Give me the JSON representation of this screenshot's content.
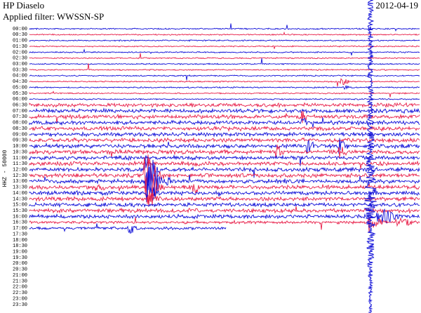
{
  "header": {
    "station": "HP Diaselo",
    "filter": "Applied filter: WWSSN-SP",
    "date": "2012-04-19"
  },
  "axis_label": "HHZ - 50000",
  "times": [
    "00:00",
    "00:30",
    "01:00",
    "01:30",
    "02:00",
    "02:30",
    "03:00",
    "03:30",
    "04:00",
    "04:30",
    "05:00",
    "05:30",
    "06:00",
    "06:30",
    "07:00",
    "07:30",
    "08:00",
    "08:30",
    "09:00",
    "09:30",
    "10:00",
    "10:30",
    "11:00",
    "11:30",
    "12:00",
    "12:30",
    "13:00",
    "13:30",
    "14:00",
    "14:30",
    "15:00",
    "15:30",
    "16:00",
    "16:30",
    "17:00",
    "17:30",
    "18:00",
    "18:30",
    "19:00",
    "19:30",
    "20:00",
    "20:30",
    "21:00",
    "21:30",
    "22:00",
    "22:30",
    "23:00",
    "23:30"
  ]
}
